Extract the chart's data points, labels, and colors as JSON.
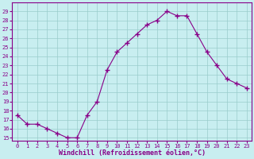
{
  "x": [
    0,
    1,
    2,
    3,
    4,
    5,
    6,
    7,
    8,
    9,
    10,
    11,
    12,
    13,
    14,
    15,
    16,
    17,
    18,
    19,
    20,
    21,
    22,
    23
  ],
  "y": [
    17.5,
    16.5,
    16.5,
    16.0,
    15.5,
    15.0,
    15.0,
    17.5,
    19.0,
    22.5,
    24.5,
    25.5,
    26.5,
    27.5,
    28.0,
    29.0,
    28.5,
    28.5,
    26.5,
    24.5,
    23.0,
    21.5,
    21.0,
    20.5
  ],
  "line_color": "#880088",
  "marker": "+",
  "marker_color": "#880088",
  "bg_color": "#c8eef0",
  "grid_color": "#99cccc",
  "xlabel": "Windchill (Refroidissement éolien,°C)",
  "ylabel_ticks": [
    15,
    16,
    17,
    18,
    19,
    20,
    21,
    22,
    23,
    24,
    25,
    26,
    27,
    28,
    29
  ],
  "ylim": [
    14.7,
    30.0
  ],
  "xlim": [
    -0.5,
    23.5
  ],
  "xlabel_color": "#880088",
  "tick_color": "#880088",
  "spine_color": "#880088",
  "tick_fontsize": 5.0,
  "xlabel_fontsize": 6.0
}
